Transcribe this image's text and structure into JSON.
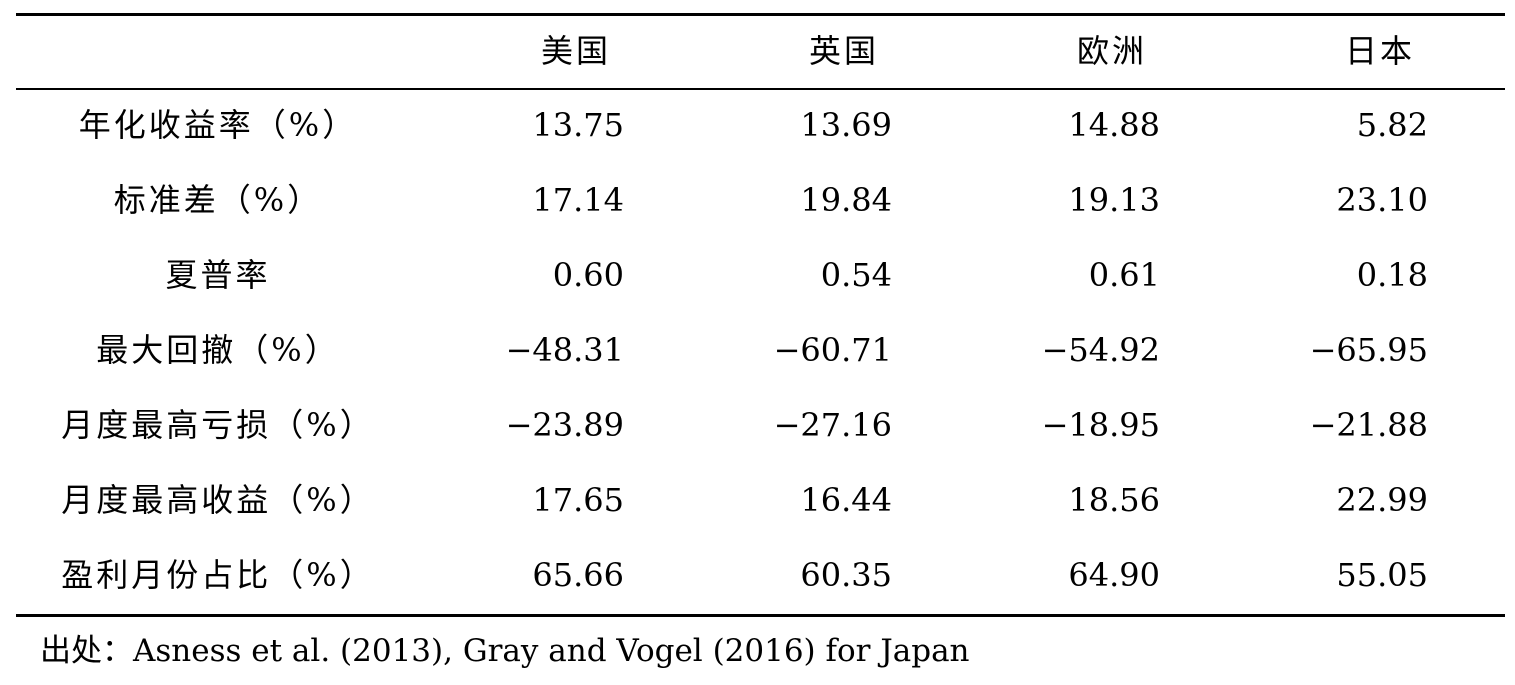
{
  "table": {
    "columns": [
      "美国",
      "英国",
      "欧洲",
      "日本"
    ],
    "rows": [
      {
        "label": "年化收益率（%）",
        "values": [
          "13.75",
          "13.69",
          "14.88",
          "5.82"
        ]
      },
      {
        "label": "标准差（%）",
        "values": [
          "17.14",
          "19.84",
          "19.13",
          "23.10"
        ]
      },
      {
        "label": "夏普率",
        "values": [
          "0.60",
          "0.54",
          "0.61",
          "0.18"
        ]
      },
      {
        "label": "最大回撤（%）",
        "values": [
          "−48.31",
          "−60.71",
          "−54.92",
          "−65.95"
        ]
      },
      {
        "label": "月度最高亏损（%）",
        "values": [
          "−23.89",
          "−27.16",
          "−18.95",
          "−21.88"
        ]
      },
      {
        "label": "月度最高收益（%）",
        "values": [
          "17.65",
          "16.44",
          "18.56",
          "22.99"
        ]
      },
      {
        "label": "盈利月份占比（%）",
        "values": [
          "65.66",
          "60.35",
          "64.90",
          "55.05"
        ]
      }
    ]
  },
  "source": "出处：Asness et al. (2013), Gray and Vogel (2016) for Japan"
}
